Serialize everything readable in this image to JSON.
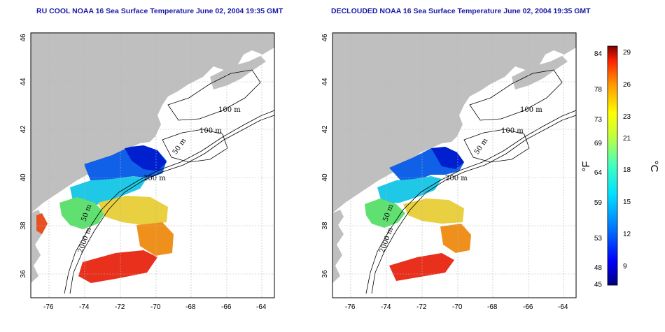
{
  "colors": {
    "land": "#bfbfbf",
    "ocean": "#ffffff",
    "frame": "#000000",
    "grid": "#b4b4b4",
    "title": "#1a1aa8"
  },
  "maps": [
    {
      "title": "RU COOL NOAA 16 Sea Surface Temperature June 02, 2004 19:35 GMT",
      "x_ticks": [
        "-76",
        "-74",
        "-72",
        "-70",
        "-68",
        "-66",
        "-64"
      ],
      "y_ticks": [
        "46",
        "44",
        "42",
        "40",
        "38",
        "36"
      ],
      "contour_labels": [
        "100 m",
        "100 m",
        "50 m",
        "200 m",
        "50 m",
        "2000 m"
      ]
    },
    {
      "title": "DECLOUDED NOAA 16 Sea Surface Temperature June 02, 2004 19:35 GMT",
      "x_ticks": [
        "-76",
        "-74",
        "-72",
        "-70",
        "-68",
        "-66",
        "-64"
      ],
      "y_ticks": [
        "46",
        "44",
        "42",
        "40",
        "38",
        "36"
      ],
      "contour_labels": [
        "100 m",
        "100 m",
        "50 m",
        "200 m",
        "50 m",
        "2000 m"
      ]
    }
  ],
  "colorbar": {
    "fahrenheit_unit": "°F",
    "celsius_unit": "°C",
    "fahrenheit_ticks": [
      "84",
      "78",
      "73",
      "69",
      "64",
      "59",
      "53",
      "48",
      "45"
    ],
    "celsius_ticks": [
      "29",
      "26",
      "23",
      "21",
      "18",
      "15",
      "12",
      "9"
    ],
    "gradient_colors": [
      "#000080",
      "#0000ff",
      "#0080ff",
      "#00e0ff",
      "#40ffc0",
      "#c0ff40",
      "#ffff00",
      "#ff9900",
      "#ff2000",
      "#800000"
    ]
  }
}
